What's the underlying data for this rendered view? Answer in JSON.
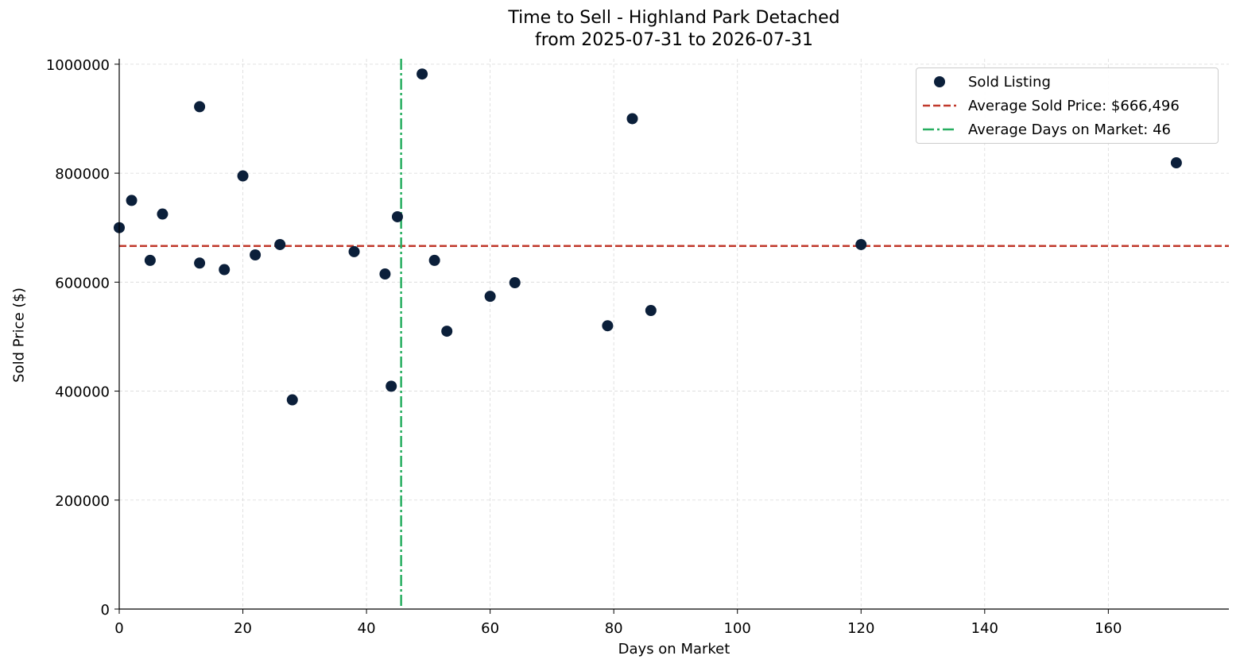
{
  "chart_data": {
    "type": "scatter",
    "title": "Time to Sell - Highland Park Detached",
    "subtitle": "from 2025-07-31 to 2026-07-31",
    "xlabel": "Days on Market",
    "ylabel": "Sold Price ($)",
    "xlim": [
      0,
      179.5
    ],
    "ylim": [
      0,
      1010000
    ],
    "x_ticks": [
      0,
      20,
      40,
      60,
      80,
      100,
      120,
      140,
      160
    ],
    "y_ticks": [
      0,
      200000,
      400000,
      600000,
      800000,
      1000000
    ],
    "grid": true,
    "legend_position": "top-right",
    "series": [
      {
        "name": "Sold Listing",
        "color": "#0b1f3a",
        "points": [
          {
            "x": 0,
            "y": 700000
          },
          {
            "x": 2,
            "y": 750000
          },
          {
            "x": 5,
            "y": 640000
          },
          {
            "x": 7,
            "y": 725000
          },
          {
            "x": 13,
            "y": 922000
          },
          {
            "x": 13,
            "y": 635000
          },
          {
            "x": 17,
            "y": 623000
          },
          {
            "x": 20,
            "y": 795000
          },
          {
            "x": 22,
            "y": 650000
          },
          {
            "x": 26,
            "y": 669000
          },
          {
            "x": 28,
            "y": 384000
          },
          {
            "x": 38,
            "y": 656000
          },
          {
            "x": 43,
            "y": 615000
          },
          {
            "x": 44,
            "y": 409000
          },
          {
            "x": 45,
            "y": 720000
          },
          {
            "x": 49,
            "y": 982000
          },
          {
            "x": 51,
            "y": 640000
          },
          {
            "x": 53,
            "y": 510000
          },
          {
            "x": 60,
            "y": 574000
          },
          {
            "x": 64,
            "y": 599000
          },
          {
            "x": 79,
            "y": 520000
          },
          {
            "x": 83,
            "y": 900000
          },
          {
            "x": 86,
            "y": 548000
          },
          {
            "x": 120,
            "y": 669000
          },
          {
            "x": 171,
            "y": 819000
          }
        ]
      }
    ],
    "reference_lines": [
      {
        "name": "Average Sold Price: $666,496",
        "orientation": "horizontal",
        "value": 666496,
        "style": "dashed",
        "color": "#c0392b"
      },
      {
        "name": "Average Days on Market: 46",
        "orientation": "vertical",
        "value": 45.6,
        "style": "dashdot",
        "color": "#27ae60"
      }
    ]
  }
}
